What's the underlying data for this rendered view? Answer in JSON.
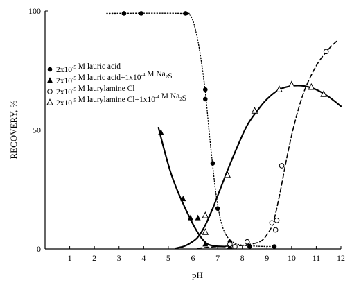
{
  "chart_data": {
    "type": "scatter",
    "xlabel": "pH",
    "ylabel": "RECOVERY, %",
    "xlim": [
      0,
      12
    ],
    "ylim": [
      0,
      100
    ],
    "x_ticks": [
      "1",
      "2",
      "3",
      "4",
      "5",
      "6",
      "7",
      "8",
      "9",
      "10",
      "11",
      "12"
    ],
    "y_ticks": [
      "0",
      "50",
      "100"
    ],
    "legend_position": "center-left",
    "series": [
      {
        "legend": {
          "a": "2x10",
          "exp": "-5",
          "b": " M lauric acid",
          "c": "",
          "exp2": "",
          "d": "",
          "sub": "",
          "e": ""
        },
        "marker": "filled-circle",
        "line_style": "dotted",
        "points": [
          [
            3.2,
            99
          ],
          [
            3.9,
            99
          ],
          [
            5.7,
            99
          ],
          [
            6.5,
            67
          ],
          [
            6.5,
            63
          ],
          [
            6.8,
            36
          ],
          [
            7.0,
            17
          ],
          [
            7.5,
            3
          ],
          [
            7.7,
            1
          ],
          [
            8.3,
            1
          ],
          [
            9.3,
            1
          ]
        ],
        "curve": [
          [
            2.5,
            99
          ],
          [
            5.5,
            99
          ],
          [
            5.9,
            98
          ],
          [
            6.15,
            90
          ],
          [
            6.35,
            78
          ],
          [
            6.5,
            66
          ],
          [
            6.65,
            50
          ],
          [
            6.8,
            35
          ],
          [
            6.95,
            22
          ],
          [
            7.15,
            11
          ],
          [
            7.4,
            5
          ],
          [
            7.8,
            2
          ],
          [
            8.5,
            1.2
          ],
          [
            9.4,
            1
          ]
        ]
      },
      {
        "legend": {
          "a": "2x10",
          "exp": "-5",
          "b": " M lauric acid+1x10",
          "c": "",
          "exp2": "-4",
          "d": " M Na",
          "sub": "2",
          "e": "S"
        },
        "marker": "filled-triangle",
        "line_style": "solid",
        "points": [
          [
            4.7,
            49
          ],
          [
            5.6,
            21
          ],
          [
            5.9,
            13
          ],
          [
            6.2,
            13
          ],
          [
            6.5,
            2
          ],
          [
            7.5,
            1
          ]
        ],
        "curve": [
          [
            4.6,
            51
          ],
          [
            4.85,
            41
          ],
          [
            5.1,
            32
          ],
          [
            5.35,
            25
          ],
          [
            5.6,
            19
          ],
          [
            5.85,
            13.5
          ],
          [
            6.1,
            8.5
          ],
          [
            6.35,
            4.5
          ],
          [
            6.6,
            2
          ],
          [
            6.9,
            1.2
          ],
          [
            7.3,
            1
          ]
        ]
      },
      {
        "legend": {
          "a": "2x10",
          "exp": "-5",
          "b": " M laurylamine Cl",
          "c": "",
          "exp2": "",
          "d": "",
          "sub": "",
          "e": ""
        },
        "marker": "open-circle",
        "line_style": "dashed",
        "points": [
          [
            7.5,
            2
          ],
          [
            7.7,
            1
          ],
          [
            8.2,
            3
          ],
          [
            9.2,
            11
          ],
          [
            9.35,
            8
          ],
          [
            9.4,
            12
          ],
          [
            9.6,
            35
          ],
          [
            11.4,
            83
          ]
        ],
        "curve": [
          [
            6.2,
            0.3
          ],
          [
            7.0,
            1
          ],
          [
            8.0,
            1.5
          ],
          [
            8.7,
            3
          ],
          [
            9.0,
            6
          ],
          [
            9.25,
            11
          ],
          [
            9.5,
            22
          ],
          [
            9.8,
            38
          ],
          [
            10.1,
            52
          ],
          [
            10.5,
            66
          ],
          [
            11.0,
            77
          ],
          [
            11.5,
            84
          ],
          [
            11.9,
            88
          ]
        ]
      },
      {
        "legend": {
          "a": "2x10",
          "exp": "-5",
          "b": " M laurylamine Cl+1x10",
          "c": "",
          "exp2": "-4",
          "d": " M Na",
          "sub": "2",
          "e": "S"
        },
        "marker": "open-triangle",
        "line_style": "solid",
        "points": [
          [
            6.5,
            7
          ],
          [
            6.5,
            14
          ],
          [
            7.4,
            31
          ],
          [
            8.5,
            58
          ],
          [
            9.5,
            67
          ],
          [
            10.0,
            69
          ],
          [
            10.8,
            68
          ],
          [
            11.3,
            65
          ]
        ],
        "curve": [
          [
            5.3,
            0.3
          ],
          [
            5.6,
            1
          ],
          [
            5.9,
            2.5
          ],
          [
            6.2,
            5
          ],
          [
            6.5,
            10
          ],
          [
            6.8,
            17
          ],
          [
            7.1,
            25
          ],
          [
            7.4,
            33
          ],
          [
            7.8,
            43
          ],
          [
            8.2,
            52
          ],
          [
            8.6,
            58
          ],
          [
            9.0,
            63
          ],
          [
            9.5,
            67
          ],
          [
            10.0,
            68.5
          ],
          [
            10.5,
            68.5
          ],
          [
            11.0,
            67
          ],
          [
            11.5,
            64
          ],
          [
            12.0,
            60
          ]
        ]
      }
    ]
  }
}
